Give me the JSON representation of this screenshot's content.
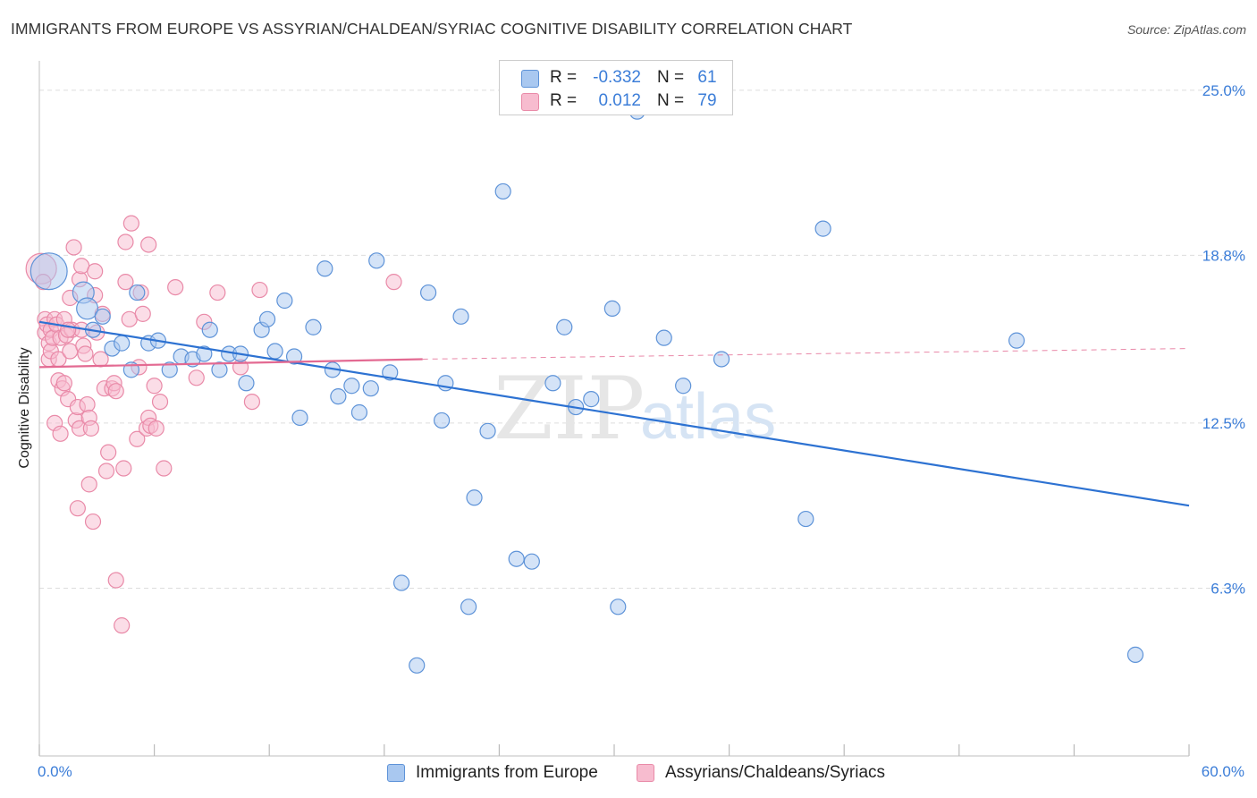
{
  "title": "IMMIGRANTS FROM EUROPE VS ASSYRIAN/CHALDEAN/SYRIAC COGNITIVE DISABILITY CORRELATION CHART",
  "source": "Source: ZipAtlas.com",
  "watermark": {
    "part1": "ZIP",
    "part2": "atlas"
  },
  "colors": {
    "blue_fill": "#a9c8f0",
    "blue_stroke": "#5e93d8",
    "blue_line": "#2d72d2",
    "pink_fill": "#f7bccf",
    "pink_stroke": "#e98aa8",
    "pink_line": "#e36a92",
    "grid": "#dddddd",
    "tick_label": "#3b7dd8"
  },
  "stats": {
    "rows": [
      {
        "r_label": "R =",
        "r_value": "-0.332",
        "n_label": "N =",
        "n_value": "61"
      },
      {
        "r_label": "R =",
        "r_value": "0.012",
        "n_label": "N =",
        "n_value": "79"
      }
    ]
  },
  "axis": {
    "x_min_label": "0.0%",
    "x_max_label": "60.0%",
    "y_tick_labels": [
      "25.0%",
      "18.8%",
      "12.5%",
      "6.3%"
    ]
  },
  "legend": {
    "items": [
      {
        "label": "Immigrants from Europe"
      },
      {
        "label": "Assyrians/Chaldeans/Syriacs"
      }
    ]
  },
  "chart_data": {
    "type": "scatter",
    "title": "IMMIGRANTS FROM EUROPE VS ASSYRIAN/CHALDEAN/SYRIAC COGNITIVE DISABILITY CORRELATION CHART",
    "xlabel": "",
    "ylabel": "Cognitive Disability",
    "xlim": [
      0,
      60
    ],
    "ylim": [
      0,
      25.8
    ],
    "y_ticks": [
      25.0,
      18.8,
      12.5,
      6.3
    ],
    "grid": true,
    "legend_position": "bottom-center",
    "series": [
      {
        "name": "Immigrants from Europe",
        "r": -0.332,
        "n": 61,
        "trend": {
          "x": [
            0,
            60
          ],
          "y": [
            16.3,
            9.4
          ],
          "style": "solid"
        },
        "points": [
          [
            0.5,
            18.2,
            2.4
          ],
          [
            2.3,
            17.4,
            1.4
          ],
          [
            2.5,
            16.8,
            1.4
          ],
          [
            2.8,
            16.0,
            1.0
          ],
          [
            3.3,
            16.5,
            1.0
          ],
          [
            3.8,
            15.3,
            1.0
          ],
          [
            4.3,
            15.5,
            1.0
          ],
          [
            4.8,
            14.5,
            1.0
          ],
          [
            5.1,
            17.4,
            1.0
          ],
          [
            5.7,
            15.5,
            1.0
          ],
          [
            6.2,
            15.6,
            1.0
          ],
          [
            6.8,
            14.5,
            1.0
          ],
          [
            7.4,
            15.0,
            1.0
          ],
          [
            8.0,
            14.9,
            1.0
          ],
          [
            8.6,
            15.1,
            1.0
          ],
          [
            8.9,
            16.0,
            1.0
          ],
          [
            9.4,
            14.5,
            1.0
          ],
          [
            9.9,
            15.1,
            1.0
          ],
          [
            10.5,
            15.1,
            1.0
          ],
          [
            10.8,
            14.0,
            1.0
          ],
          [
            11.6,
            16.0,
            1.0
          ],
          [
            11.9,
            16.4,
            1.0
          ],
          [
            12.3,
            15.2,
            1.0
          ],
          [
            12.8,
            17.1,
            1.0
          ],
          [
            13.3,
            15.0,
            1.0
          ],
          [
            13.6,
            12.7,
            1.0
          ],
          [
            14.3,
            16.1,
            1.0
          ],
          [
            14.9,
            18.3,
            1.0
          ],
          [
            15.3,
            14.5,
            1.0
          ],
          [
            15.6,
            13.5,
            1.0
          ],
          [
            16.3,
            13.9,
            1.0
          ],
          [
            16.7,
            12.9,
            1.0
          ],
          [
            17.3,
            13.8,
            1.0
          ],
          [
            17.6,
            18.6,
            1.0
          ],
          [
            18.3,
            14.4,
            1.0
          ],
          [
            18.9,
            6.5,
            1.0
          ],
          [
            19.7,
            3.4,
            1.0
          ],
          [
            20.3,
            17.4,
            1.0
          ],
          [
            21.0,
            12.6,
            1.0
          ],
          [
            21.2,
            14.0,
            1.0
          ],
          [
            22.0,
            16.5,
            1.0
          ],
          [
            22.4,
            5.6,
            1.0
          ],
          [
            22.7,
            9.7,
            1.0
          ],
          [
            23.4,
            12.2,
            1.0
          ],
          [
            24.2,
            21.2,
            1.0
          ],
          [
            24.9,
            7.4,
            1.0
          ],
          [
            25.7,
            7.3,
            1.0
          ],
          [
            26.8,
            14.0,
            1.0
          ],
          [
            27.4,
            16.1,
            1.0
          ],
          [
            28.0,
            13.1,
            1.0
          ],
          [
            28.8,
            13.4,
            1.0
          ],
          [
            29.9,
            16.8,
            1.0
          ],
          [
            30.2,
            5.6,
            1.0
          ],
          [
            31.2,
            24.2,
            1.0
          ],
          [
            32.6,
            15.7,
            1.0
          ],
          [
            33.6,
            13.9,
            1.0
          ],
          [
            35.6,
            14.9,
            1.0
          ],
          [
            40.0,
            8.9,
            1.0
          ],
          [
            40.9,
            19.8,
            1.0
          ],
          [
            57.2,
            3.8,
            1.0
          ],
          [
            51.0,
            15.6,
            1.0
          ]
        ]
      },
      {
        "name": "Assyrians/Chaldeans/Syriacs",
        "r": 0.012,
        "n": 79,
        "trend": {
          "x": [
            0,
            20
          ],
          "y": [
            14.6,
            14.9
          ],
          "style": "solid",
          "ext_x": [
            20,
            60
          ],
          "ext_y": [
            14.9,
            15.3
          ],
          "ext_style": "dashed"
        },
        "points": [
          [
            0.1,
            18.3,
            2.0
          ],
          [
            0.2,
            17.8,
            1.0
          ],
          [
            0.3,
            16.4,
            1.0
          ],
          [
            0.3,
            15.9,
            1.0
          ],
          [
            0.4,
            16.2,
            1.0
          ],
          [
            0.5,
            15.5,
            1.0
          ],
          [
            0.5,
            14.9,
            1.0
          ],
          [
            0.6,
            16.0,
            1.0
          ],
          [
            0.6,
            15.2,
            1.0
          ],
          [
            0.7,
            15.7,
            1.0
          ],
          [
            0.8,
            16.4,
            1.0
          ],
          [
            0.8,
            12.5,
            1.0
          ],
          [
            0.9,
            16.2,
            1.0
          ],
          [
            1.0,
            14.9,
            1.0
          ],
          [
            1.0,
            14.1,
            1.0
          ],
          [
            1.1,
            15.7,
            1.0
          ],
          [
            1.1,
            12.1,
            1.0
          ],
          [
            1.2,
            13.8,
            1.0
          ],
          [
            1.3,
            16.4,
            1.0
          ],
          [
            1.3,
            14.0,
            1.0
          ],
          [
            1.4,
            15.8,
            1.0
          ],
          [
            1.5,
            13.4,
            1.0
          ],
          [
            1.6,
            15.2,
            1.0
          ],
          [
            1.6,
            17.2,
            1.0
          ],
          [
            1.7,
            16.0,
            1.0
          ],
          [
            1.8,
            19.1,
            1.0
          ],
          [
            1.9,
            12.6,
            1.0
          ],
          [
            2.0,
            13.1,
            1.0
          ],
          [
            2.0,
            9.3,
            1.0
          ],
          [
            2.1,
            17.9,
            1.0
          ],
          [
            2.1,
            12.3,
            1.0
          ],
          [
            2.2,
            16.0,
            1.0
          ],
          [
            2.2,
            18.4,
            1.0
          ],
          [
            2.3,
            15.4,
            1.0
          ],
          [
            2.4,
            15.1,
            1.0
          ],
          [
            2.5,
            13.2,
            1.0
          ],
          [
            2.6,
            12.7,
            1.0
          ],
          [
            2.6,
            10.2,
            1.0
          ],
          [
            2.7,
            12.3,
            1.0
          ],
          [
            2.8,
            8.8,
            1.0
          ],
          [
            2.9,
            17.3,
            1.0
          ],
          [
            3.0,
            15.9,
            1.0
          ],
          [
            3.2,
            14.9,
            1.0
          ],
          [
            3.3,
            16.6,
            1.0
          ],
          [
            3.4,
            13.8,
            1.0
          ],
          [
            3.5,
            10.7,
            1.0
          ],
          [
            3.6,
            11.4,
            1.0
          ],
          [
            3.8,
            13.8,
            1.0
          ],
          [
            3.9,
            14.0,
            1.0
          ],
          [
            4.0,
            13.7,
            1.0
          ],
          [
            4.0,
            6.6,
            1.0
          ],
          [
            4.3,
            4.9,
            1.0
          ],
          [
            4.4,
            10.8,
            1.0
          ],
          [
            4.5,
            19.3,
            1.0
          ],
          [
            4.5,
            17.8,
            1.0
          ],
          [
            4.7,
            16.4,
            1.0
          ],
          [
            4.8,
            20.0,
            1.0
          ],
          [
            5.1,
            11.9,
            1.0
          ],
          [
            5.2,
            14.6,
            1.0
          ],
          [
            5.3,
            17.4,
            1.0
          ],
          [
            5.4,
            16.6,
            1.0
          ],
          [
            5.6,
            12.3,
            1.0
          ],
          [
            5.7,
            19.2,
            1.0
          ],
          [
            5.7,
            12.7,
            1.0
          ],
          [
            5.8,
            12.4,
            1.0
          ],
          [
            6.0,
            13.9,
            1.0
          ],
          [
            6.1,
            12.3,
            1.0
          ],
          [
            6.3,
            13.3,
            1.0
          ],
          [
            6.5,
            10.8,
            1.0
          ],
          [
            7.1,
            17.6,
            1.0
          ],
          [
            8.2,
            14.2,
            1.0
          ],
          [
            8.6,
            16.3,
            1.0
          ],
          [
            9.3,
            17.4,
            1.0
          ],
          [
            10.5,
            14.6,
            1.0
          ],
          [
            11.1,
            13.3,
            1.0
          ],
          [
            11.5,
            17.5,
            1.0
          ],
          [
            18.5,
            17.8,
            1.0
          ],
          [
            2.9,
            18.2,
            1.0
          ],
          [
            1.5,
            16.0,
            1.0
          ]
        ]
      }
    ]
  }
}
